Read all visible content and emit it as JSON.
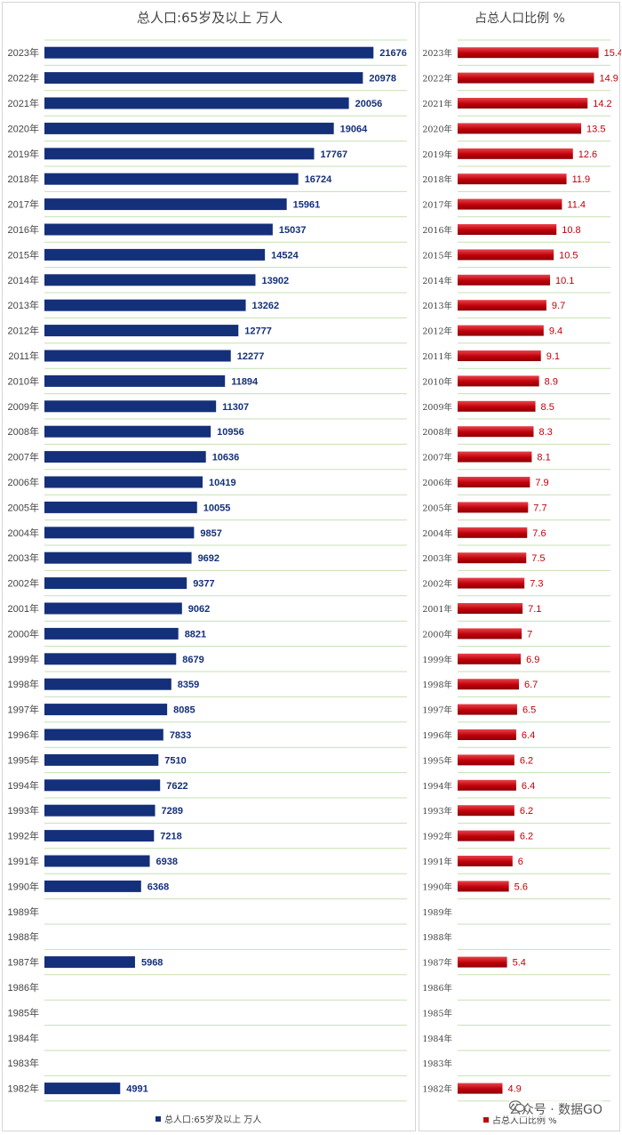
{
  "chart_data": [
    {
      "type": "bar",
      "orientation": "horizontal",
      "title": "总人口:65岁及以上 万人",
      "legend": "总人口:65岁及以上 万人",
      "legend_position": "bottom",
      "categories": [
        "2023年",
        "2022年",
        "2021年",
        "2020年",
        "2019年",
        "2018年",
        "2017年",
        "2016年",
        "2015年",
        "2014年",
        "2013年",
        "2012年",
        "2011年",
        "2010年",
        "2009年",
        "2008年",
        "2007年",
        "2006年",
        "2005年",
        "2004年",
        "2003年",
        "2002年",
        "2001年",
        "2000年",
        "1999年",
        "1998年",
        "1997年",
        "1996年",
        "1995年",
        "1994年",
        "1993年",
        "1992年",
        "1991年",
        "1990年",
        "1989年",
        "1988年",
        "1987年",
        "1986年",
        "1985年",
        "1984年",
        "1983年",
        "1982年"
      ],
      "values": [
        21676,
        20978,
        20056,
        19064,
        17767,
        16724,
        15961,
        15037,
        14524,
        13902,
        13262,
        12777,
        12277,
        11894,
        11307,
        10956,
        10636,
        10419,
        10055,
        9857,
        9692,
        9377,
        9062,
        8821,
        8679,
        8359,
        8085,
        7833,
        7510,
        7622,
        7289,
        7218,
        6938,
        6368,
        null,
        null,
        5968,
        null,
        null,
        null,
        null,
        4991
      ],
      "labels": [
        "21676",
        "20978",
        "20056",
        "19064",
        "17767",
        "16724",
        "15961",
        "15037",
        "14524",
        "13902",
        "13262",
        "12777",
        "12277",
        "11894",
        "11307",
        "10956",
        "10636",
        "10419",
        "10055",
        "9857",
        "9692",
        "9377",
        "9062",
        "8821",
        "8679",
        "8359",
        "8085",
        "7833",
        "7510",
        "7622",
        "7289",
        "7218",
        "6938",
        "6368",
        "",
        "",
        "5968",
        "",
        "",
        "",
        "",
        "4991"
      ],
      "xlim": [
        0,
        24000
      ],
      "grid": true,
      "color": "#14307a",
      "grid_color": "#c6e0b4"
    },
    {
      "type": "bar",
      "orientation": "horizontal",
      "title": "占总人口比例 %",
      "legend": "占总人口比例 %",
      "legend_position": "bottom",
      "categories": [
        "2023年",
        "2022年",
        "2021年",
        "2020年",
        "2019年",
        "2018年",
        "2017年",
        "2016年",
        "2015年",
        "2014年",
        "2013年",
        "2012年",
        "2011年",
        "2010年",
        "2009年",
        "2008年",
        "2007年",
        "2006年",
        "2005年",
        "2004年",
        "2003年",
        "2002年",
        "2001年",
        "2000年",
        "1999年",
        "1998年",
        "1997年",
        "1996年",
        "1995年",
        "1994年",
        "1993年",
        "1992年",
        "1991年",
        "1990年",
        "1989年",
        "1988年",
        "1987年",
        "1986年",
        "1985年",
        "1984年",
        "1983年",
        "1982年"
      ],
      "values": [
        15.4,
        14.9,
        14.2,
        13.5,
        12.6,
        11.9,
        11.4,
        10.8,
        10.5,
        10.1,
        9.7,
        9.4,
        9.1,
        8.9,
        8.5,
        8.3,
        8.1,
        7.9,
        7.7,
        7.6,
        7.5,
        7.3,
        7.1,
        7,
        6.9,
        6.7,
        6.5,
        6.4,
        6.2,
        6.4,
        6.2,
        6.2,
        6,
        5.6,
        null,
        null,
        5.4,
        null,
        null,
        null,
        null,
        4.9
      ],
      "labels": [
        "15.40",
        "14.9",
        "14.2",
        "13.5",
        "12.6",
        "11.9",
        "11.4",
        "10.8",
        "10.5",
        "10.1",
        "9.7",
        "9.4",
        "9.1",
        "8.9",
        "8.5",
        "8.3",
        "8.1",
        "7.9",
        "7.7",
        "7.6",
        "7.5",
        "7.3",
        "7.1",
        "7",
        "6.9",
        "6.7",
        "6.5",
        "6.4",
        "6.2",
        "6.4",
        "6.2",
        "6.2",
        "6",
        "5.6",
        "",
        "",
        "5.4",
        "",
        "",
        "",
        "",
        "4.9"
      ],
      "xlim": [
        0,
        20
      ],
      "grid": true,
      "color": "#c0000a",
      "grid_color": "#c6e0b4"
    }
  ],
  "watermark": {
    "text": "公众号 · 数据GO",
    "icon": "wechat-icon"
  }
}
